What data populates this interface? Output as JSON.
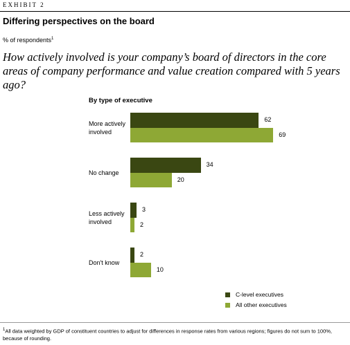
{
  "exhibit": "EXHIBIT 2",
  "chart_data": {
    "type": "bar",
    "orientation": "horizontal",
    "title": "Differing perspectives on the board",
    "subtitle": "% of respondents",
    "subtitle_note": "1",
    "question": "How actively involved is your company’s board of directors in the core areas of company performance and value creation compared with 5 years ago?",
    "group_label": "By type of executive",
    "categories": [
      "More actively involved",
      "No change",
      "Less actively involved",
      "Don't know"
    ],
    "series": [
      {
        "name": "C-level executives",
        "color": "#3a4712",
        "values": [
          62,
          34,
          3,
          2
        ]
      },
      {
        "name": "All other executives",
        "color": "#8ea835",
        "values": [
          69,
          20,
          2,
          10
        ]
      }
    ]
  },
  "footnote": {
    "marker": "1",
    "text": "All data weighted by GDP of constituent countries to adjust for differences in response rates from various regions; figures do not sum to 100%, because of rounding."
  }
}
